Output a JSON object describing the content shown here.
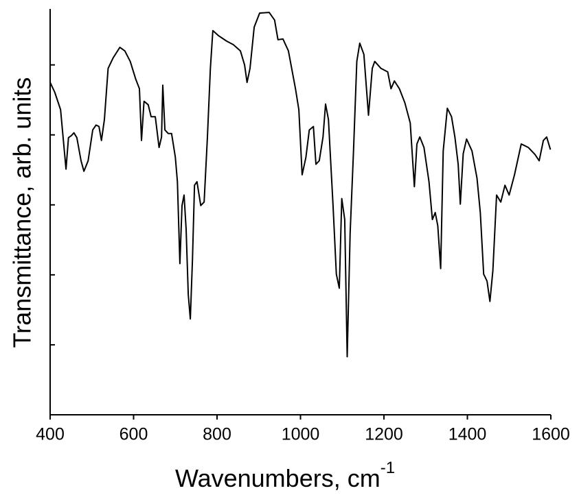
{
  "chart_data": {
    "type": "line",
    "xlabel": "Wavenumbers, cm",
    "xlabel_superscript": "-1",
    "ylabel": "Transmittance, arb. units",
    "color": "#000000",
    "xlim": [
      400,
      1600
    ],
    "xticks": [
      400,
      600,
      800,
      1000,
      1200,
      1400,
      1600
    ],
    "ylim": [
      0,
      5.8
    ],
    "yticks": [
      0,
      1,
      2,
      3,
      4,
      5
    ],
    "x": [
      400,
      411,
      425,
      438,
      444,
      451,
      457,
      464,
      474,
      481,
      491,
      502,
      510,
      517,
      523,
      530,
      539,
      551,
      567,
      579,
      592,
      605,
      614,
      619,
      625,
      635,
      642,
      652,
      661,
      667,
      670,
      675,
      683,
      691,
      700,
      705,
      711,
      716,
      721,
      726,
      731,
      736,
      741,
      746,
      752,
      761,
      769,
      777,
      784,
      790,
      803,
      823,
      839,
      856,
      866,
      872,
      879,
      889,
      902,
      925,
      938,
      946,
      958,
      971,
      988,
      996,
      1004,
      1013,
      1021,
      1031,
      1037,
      1045,
      1054,
      1060,
      1067,
      1078,
      1086,
      1093,
      1099,
      1106,
      1112,
      1119,
      1127,
      1135,
      1142,
      1152,
      1163,
      1172,
      1178,
      1193,
      1209,
      1217,
      1225,
      1237,
      1250,
      1263,
      1273,
      1279,
      1286,
      1296,
      1308,
      1316,
      1323,
      1329,
      1336,
      1342,
      1352,
      1362,
      1370,
      1378,
      1383,
      1390,
      1398,
      1411,
      1423,
      1431,
      1439,
      1447,
      1454,
      1461,
      1470,
      1480,
      1490,
      1500,
      1513,
      1529,
      1546,
      1562,
      1572,
      1582,
      1590,
      1599
    ],
    "values": [
      4.75,
      4.61,
      4.36,
      3.51,
      3.96,
      3.99,
      4.03,
      3.96,
      3.63,
      3.48,
      3.63,
      4.07,
      4.14,
      4.12,
      3.92,
      4.22,
      4.95,
      5.1,
      5.25,
      5.2,
      5.05,
      4.8,
      4.66,
      3.92,
      4.48,
      4.43,
      4.26,
      4.26,
      3.82,
      3.97,
      4.71,
      4.07,
      4.02,
      4.02,
      3.68,
      3.33,
      2.16,
      2.99,
      3.14,
      2.65,
      1.72,
      1.37,
      2.21,
      3.28,
      3.33,
      2.99,
      3.04,
      3.97,
      4.95,
      5.49,
      5.42,
      5.34,
      5.29,
      5.2,
      5.0,
      4.75,
      4.95,
      5.54,
      5.74,
      5.75,
      5.64,
      5.36,
      5.37,
      5.2,
      4.66,
      4.36,
      3.43,
      3.68,
      4.07,
      4.12,
      3.58,
      3.63,
      3.97,
      4.44,
      4.22,
      2.99,
      2.01,
      1.81,
      3.09,
      2.79,
      0.83,
      2.6,
      3.77,
      5.05,
      5.31,
      5.15,
      4.28,
      4.95,
      5.05,
      4.95,
      4.9,
      4.66,
      4.77,
      4.66,
      4.46,
      4.17,
      3.26,
      3.87,
      3.97,
      3.82,
      3.33,
      2.79,
      2.89,
      2.7,
      2.09,
      3.77,
      4.38,
      4.26,
      3.97,
      3.58,
      3.01,
      3.73,
      3.94,
      3.77,
      3.38,
      2.89,
      2.01,
      1.91,
      1.62,
      2.06,
      3.14,
      3.04,
      3.28,
      3.14,
      3.43,
      3.87,
      3.82,
      3.72,
      3.63,
      3.92,
      3.97,
      3.79
    ]
  }
}
